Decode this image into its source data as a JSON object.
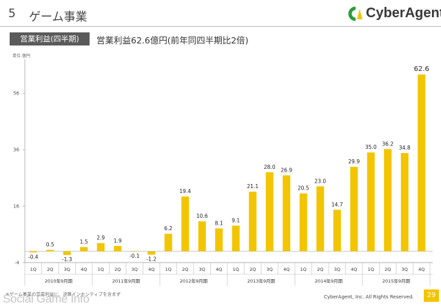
{
  "header": {
    "section_number": "5",
    "title": "ゲーム事業",
    "logo_text": "CyberAgent."
  },
  "badge": "営業利益(四半期)",
  "headline": "営業利益62.6億円(前年同四半期比2倍)",
  "unit_label": "単位 億円",
  "footnote": "※ゲーム事業の営業利益に、決算インセンティブを含まず",
  "watermark": "Social Game Info",
  "copyright": "CyberAgent, Inc. All Rights Reserved.",
  "page_number": "29",
  "colors": {
    "bar": "#f2c500",
    "accent": "#f3c400",
    "badge_bg": "#5a5a5a"
  },
  "chart_data": {
    "type": "bar",
    "categories": [
      "1Q",
      "2Q",
      "3Q",
      "4Q",
      "1Q",
      "2Q",
      "3Q",
      "4Q",
      "1Q",
      "2Q",
      "3Q",
      "4Q",
      "1Q",
      "2Q",
      "3Q",
      "4Q",
      "1Q",
      "2Q",
      "3Q",
      "4Q",
      "1Q",
      "2Q",
      "3Q",
      "4Q"
    ],
    "values": [
      -0.4,
      0.5,
      -1.3,
      1.5,
      2.9,
      1.9,
      -0.1,
      -1.2,
      6.2,
      19.4,
      10.6,
      8.1,
      9.1,
      21.1,
      28.0,
      26.9,
      20.5,
      23.0,
      14.7,
      29.9,
      35.0,
      36.2,
      34.8,
      62.6
    ],
    "value_labels": [
      "-0.4",
      "0.5",
      "-1.3",
      "1.5",
      "2.9",
      "1.9",
      "-0.1",
      "-1.2",
      "6.2",
      "19.4",
      "10.6",
      "8.1",
      "9.1",
      "21.1",
      "28.0",
      "26.9",
      "20.5",
      "23.0",
      "14.7",
      "29.9",
      "35.0",
      "36.2",
      "34.8",
      "62.6"
    ],
    "groups": [
      "2010年9月期",
      "2011年9月期",
      "2012年9月期",
      "2013年9月期",
      "2014年9月期",
      "2015年9月期"
    ],
    "yticks": [
      "-4",
      "16",
      "36",
      "56"
    ],
    "ylim": [
      -4,
      68
    ],
    "grid": false
  }
}
